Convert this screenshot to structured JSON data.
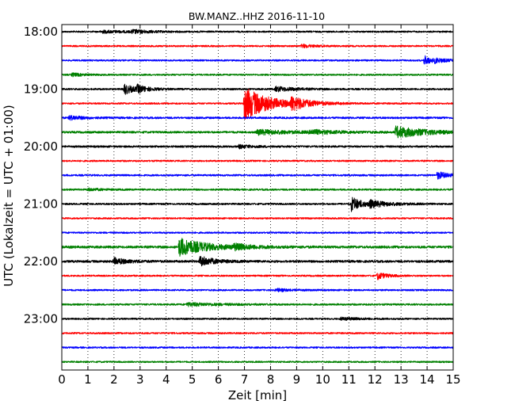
{
  "chart_data": {
    "type": "line",
    "title": "BW.MANZ..HHZ 2016-11-10",
    "xlabel": "Zeit  [min]",
    "ylabel": "UTC (Lokalzeit = UTC + 01:00)",
    "xlim": [
      0,
      15
    ],
    "x_ticks": [
      "0",
      "1",
      "2",
      "3",
      "4",
      "5",
      "6",
      "7",
      "8",
      "9",
      "10",
      "11",
      "12",
      "13",
      "14",
      "15"
    ],
    "y_ticks": [
      "18:00",
      "19:00",
      "20:00",
      "21:00",
      "22:00",
      "23:00"
    ],
    "grid": "vertical-dotted",
    "color_cycle": [
      "#000000",
      "#ff0000",
      "#0000ff",
      "#008000"
    ],
    "traces_start": "18:00",
    "trace_interval_min": 15,
    "series": [
      {
        "start": "18:00",
        "color": "black",
        "noise": 1.0,
        "events": [
          {
            "t": 1.5,
            "amp": 1.5,
            "dur": 1.2
          },
          {
            "t": 2.7,
            "amp": 2.0,
            "dur": 0.6
          }
        ]
      },
      {
        "start": "18:15",
        "color": "red",
        "noise": 1.0,
        "events": [
          {
            "t": 9.2,
            "amp": 2.0,
            "dur": 0.5
          }
        ]
      },
      {
        "start": "18:30",
        "color": "blue",
        "noise": 1.0,
        "events": [
          {
            "t": 13.9,
            "amp": 5.5,
            "dur": 0.3
          },
          {
            "t": 14.3,
            "amp": 2.0,
            "dur": 0.5
          }
        ]
      },
      {
        "start": "18:45",
        "color": "green",
        "noise": 1.0,
        "events": [
          {
            "t": 0.4,
            "amp": 2.0,
            "dur": 0.4
          }
        ]
      },
      {
        "start": "19:00",
        "color": "black",
        "noise": 1.1,
        "events": [
          {
            "t": 2.4,
            "amp": 6.5,
            "dur": 0.35
          },
          {
            "t": 2.9,
            "amp": 4.0,
            "dur": 0.4
          },
          {
            "t": 8.2,
            "amp": 3.0,
            "dur": 0.7
          }
        ]
      },
      {
        "start": "19:15",
        "color": "red",
        "noise": 1.0,
        "events": [
          {
            "t": 7.0,
            "amp": 21.0,
            "dur": 0.9
          },
          {
            "t": 8.8,
            "amp": 7.0,
            "dur": 0.6
          }
        ]
      },
      {
        "start": "19:30",
        "color": "blue",
        "noise": 1.2,
        "events": [
          {
            "t": 0.3,
            "amp": 2.5,
            "dur": 0.5
          }
        ]
      },
      {
        "start": "19:45",
        "color": "green",
        "noise": 1.3,
        "events": [
          {
            "t": 7.5,
            "amp": 3.0,
            "dur": 1.2
          },
          {
            "t": 9.5,
            "amp": 2.5,
            "dur": 1.0
          },
          {
            "t": 12.8,
            "amp": 7.0,
            "dur": 1.1
          }
        ]
      },
      {
        "start": "20:00",
        "color": "black",
        "noise": 1.2,
        "events": [
          {
            "t": 6.8,
            "amp": 2.0,
            "dur": 0.5
          }
        ]
      },
      {
        "start": "20:15",
        "color": "red",
        "noise": 1.0,
        "events": []
      },
      {
        "start": "20:30",
        "color": "blue",
        "noise": 1.1,
        "events": [
          {
            "t": 14.4,
            "amp": 4.5,
            "dur": 0.4
          }
        ]
      },
      {
        "start": "20:45",
        "color": "green",
        "noise": 1.1,
        "events": [
          {
            "t": 1.0,
            "amp": 1.5,
            "dur": 0.5
          }
        ]
      },
      {
        "start": "21:00",
        "color": "black",
        "noise": 1.1,
        "events": [
          {
            "t": 11.1,
            "amp": 9.0,
            "dur": 0.4
          },
          {
            "t": 11.8,
            "amp": 3.5,
            "dur": 0.8
          }
        ]
      },
      {
        "start": "21:15",
        "color": "red",
        "noise": 1.0,
        "events": []
      },
      {
        "start": "21:30",
        "color": "blue",
        "noise": 1.0,
        "events": []
      },
      {
        "start": "21:45",
        "color": "green",
        "noise": 1.5,
        "events": [
          {
            "t": 4.5,
            "amp": 11.0,
            "dur": 1.0
          },
          {
            "t": 6.6,
            "amp": 3.0,
            "dur": 0.6
          }
        ]
      },
      {
        "start": "22:00",
        "color": "black",
        "noise": 1.4,
        "events": [
          {
            "t": 2.0,
            "amp": 4.0,
            "dur": 0.5
          },
          {
            "t": 5.3,
            "amp": 6.5,
            "dur": 0.5
          }
        ]
      },
      {
        "start": "22:15",
        "color": "red",
        "noise": 1.0,
        "events": [
          {
            "t": 12.1,
            "amp": 4.5,
            "dur": 0.35
          }
        ]
      },
      {
        "start": "22:30",
        "color": "blue",
        "noise": 1.0,
        "events": [
          {
            "t": 8.2,
            "amp": 1.8,
            "dur": 0.6
          }
        ]
      },
      {
        "start": "22:45",
        "color": "green",
        "noise": 1.1,
        "events": [
          {
            "t": 4.8,
            "amp": 2.0,
            "dur": 1.2
          }
        ]
      },
      {
        "start": "23:00",
        "color": "black",
        "noise": 1.0,
        "events": [
          {
            "t": 10.7,
            "amp": 1.5,
            "dur": 0.8
          }
        ]
      },
      {
        "start": "23:15",
        "color": "red",
        "noise": 1.0,
        "events": []
      },
      {
        "start": "23:30",
        "color": "blue",
        "noise": 1.0,
        "events": []
      },
      {
        "start": "23:45",
        "color": "green",
        "noise": 1.0,
        "events": []
      }
    ]
  }
}
